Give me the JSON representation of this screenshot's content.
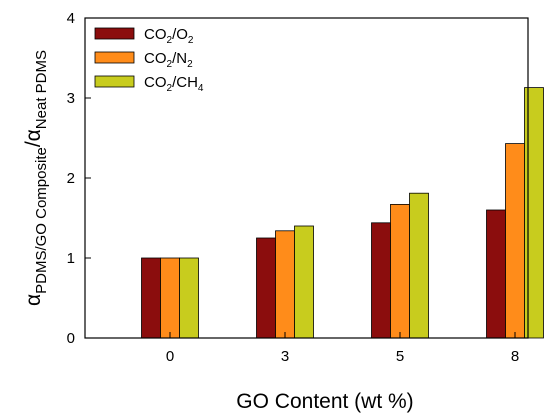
{
  "chart_data": {
    "type": "bar",
    "categories": [
      "0",
      "3",
      "5",
      "8"
    ],
    "series": [
      {
        "name": "CO2/O2",
        "color": "#8B0D0D",
        "values": [
          1.0,
          1.25,
          1.44,
          1.6
        ]
      },
      {
        "name": "CO2/N2",
        "color": "#FF8C1A",
        "values": [
          1.0,
          1.34,
          1.67,
          2.43
        ]
      },
      {
        "name": "CO2/CH4",
        "color": "#C8CC1E",
        "values": [
          1.0,
          1.4,
          1.81,
          3.13
        ]
      }
    ],
    "xlabel": "GO Content (wt %)",
    "ylabel": {
      "main": "α",
      "sub1": "PDMS/GO Composite",
      "sep": "/α",
      "sub2": "Neat PDMS"
    },
    "ylim": [
      0,
      4
    ],
    "yticks": [
      "0",
      "1",
      "2",
      "3",
      "4"
    ],
    "legend": {
      "placement": "top-left",
      "entries": [
        {
          "a": "CO",
          "a_sub": "2",
          "sep": "/O",
          "b_sub": "2"
        },
        {
          "a": "CO",
          "a_sub": "2",
          "sep": "/N",
          "b_sub": "2"
        },
        {
          "a": "CO",
          "a_sub": "2",
          "sep": "/CH",
          "b_sub": "4"
        }
      ]
    },
    "grid": false
  }
}
